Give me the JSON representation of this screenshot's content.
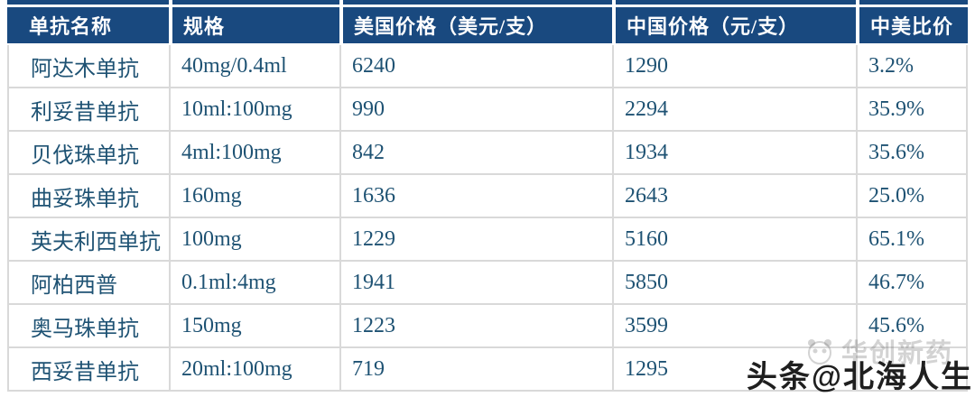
{
  "table": {
    "columns": [
      "单抗名称",
      "规格",
      "美国价格（美元/支）",
      "中国价格（元/支）",
      "中美比价"
    ],
    "rows": [
      {
        "name": "阿达木单抗",
        "spec": "40mg/0.4ml",
        "us": "6240",
        "cn": "1290",
        "ratio": "3.2%"
      },
      {
        "name": "利妥昔单抗",
        "spec": "10ml:100mg",
        "us": "990",
        "cn": "2294",
        "ratio": "35.9%"
      },
      {
        "name": "贝伐珠单抗",
        "spec": "4ml:100mg",
        "us": "842",
        "cn": "1934",
        "ratio": "35.6%"
      },
      {
        "name": "曲妥珠单抗",
        "spec": "160mg",
        "us": "1636",
        "cn": "2643",
        "ratio": "25.0%"
      },
      {
        "name": "英夫利西单抗",
        "spec": "100mg",
        "us": "1229",
        "cn": "5160",
        "ratio": "65.1%"
      },
      {
        "name": "阿柏西普",
        "spec": "0.1ml:4mg",
        "us": "1941",
        "cn": "5850",
        "ratio": "46.7%"
      },
      {
        "name": "奥马珠单抗",
        "spec": "150mg",
        "us": "1223",
        "cn": "3599",
        "ratio": "45.6%"
      },
      {
        "name": "西妥昔单抗",
        "spec": "20ml:100mg",
        "us": "719",
        "cn": "1295",
        "ratio": ""
      }
    ]
  },
  "chart_data": {
    "type": "table",
    "title": "",
    "columns": [
      "单抗名称",
      "规格",
      "美国价格（美元/支）",
      "中国价格（元/支）",
      "中美比价"
    ],
    "rows": [
      [
        "阿达木单抗",
        "40mg/0.4ml",
        6240,
        1290,
        "3.2%"
      ],
      [
        "利妥昔单抗",
        "10ml:100mg",
        990,
        2294,
        "35.9%"
      ],
      [
        "贝伐珠单抗",
        "4ml:100mg",
        842,
        1934,
        "35.6%"
      ],
      [
        "曲妥珠单抗",
        "160mg",
        1636,
        2643,
        "25.0%"
      ],
      [
        "英夫利西单抗",
        "100mg",
        1229,
        5160,
        "65.1%"
      ],
      [
        "阿柏西普",
        "0.1ml:4mg",
        1941,
        5850,
        "46.7%"
      ],
      [
        "奥马珠单抗",
        "150mg",
        1223,
        3599,
        "45.6%"
      ],
      [
        "西妥昔单抗",
        "20ml:100mg",
        719,
        1295,
        ""
      ]
    ]
  },
  "watermark": {
    "faint_text": "华创新药",
    "dark_text": "头条@北海人生"
  },
  "colors": {
    "header_bg": "#19497F",
    "header_text": "#FFFFFF",
    "body_text": "#1E5273",
    "gridline": "#D9D9D9",
    "watermark_dark": "#1F1F1F"
  }
}
